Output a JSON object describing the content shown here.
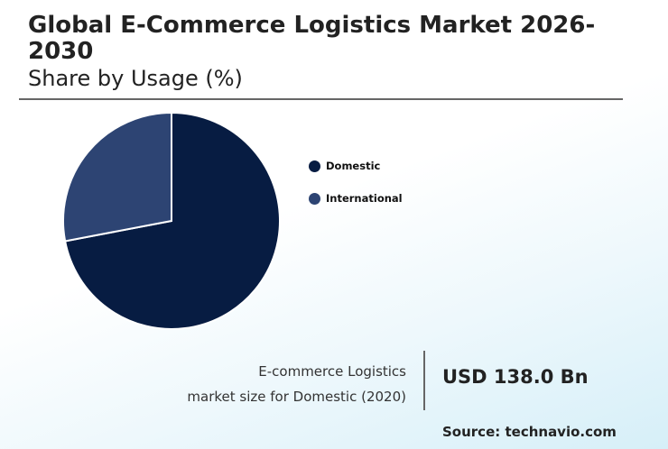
{
  "header": {
    "title": "Global E-Commerce Logistics Market 2026-2030",
    "subtitle": "Share by Usage (%)"
  },
  "chart_data": {
    "type": "pie",
    "labels": [
      "Domestic",
      "International"
    ],
    "values": [
      72,
      28
    ],
    "colors": [
      "#071c42",
      "#2d4473"
    ],
    "start_angle_deg": 0,
    "direction": "clockwise",
    "legend_position": "right"
  },
  "stat": {
    "label_line1": "E-commerce Logistics",
    "label_line2": "market size for Domestic (2020)",
    "value": "USD 138.0 Bn"
  },
  "footer": {
    "source": "Source: technavio.com"
  }
}
